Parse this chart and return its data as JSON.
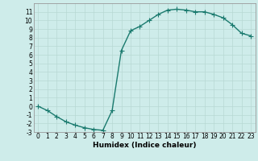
{
  "x": [
    0,
    1,
    2,
    3,
    4,
    5,
    6,
    7,
    8,
    9,
    10,
    11,
    12,
    13,
    14,
    15,
    16,
    17,
    18,
    19,
    20,
    21,
    22,
    23
  ],
  "y": [
    0,
    -0.5,
    -1.2,
    -1.8,
    -2.2,
    -2.5,
    -2.7,
    -2.8,
    -0.5,
    6.5,
    8.8,
    9.3,
    10.0,
    10.7,
    11.2,
    11.3,
    11.2,
    11.0,
    11.0,
    10.7,
    10.3,
    9.5,
    8.5,
    8.2
  ],
  "xlabel": "Humidex (Indice chaleur)",
  "bg_color": "#ceecea",
  "line_color": "#1a7a6e",
  "marker": "+",
  "ylim": [
    -3,
    12
  ],
  "yticks": [
    -3,
    -2,
    -1,
    0,
    1,
    2,
    3,
    4,
    5,
    6,
    7,
    8,
    9,
    10,
    11
  ],
  "xlim": [
    -0.5,
    23.5
  ],
  "xticks": [
    0,
    1,
    2,
    3,
    4,
    5,
    6,
    7,
    8,
    9,
    10,
    11,
    12,
    13,
    14,
    15,
    16,
    17,
    18,
    19,
    20,
    21,
    22,
    23
  ],
  "grid_color": "#b8d8d4",
  "marker_size": 4,
  "line_width": 1.0,
  "tick_fontsize": 5.5,
  "xlabel_fontsize": 6.5
}
